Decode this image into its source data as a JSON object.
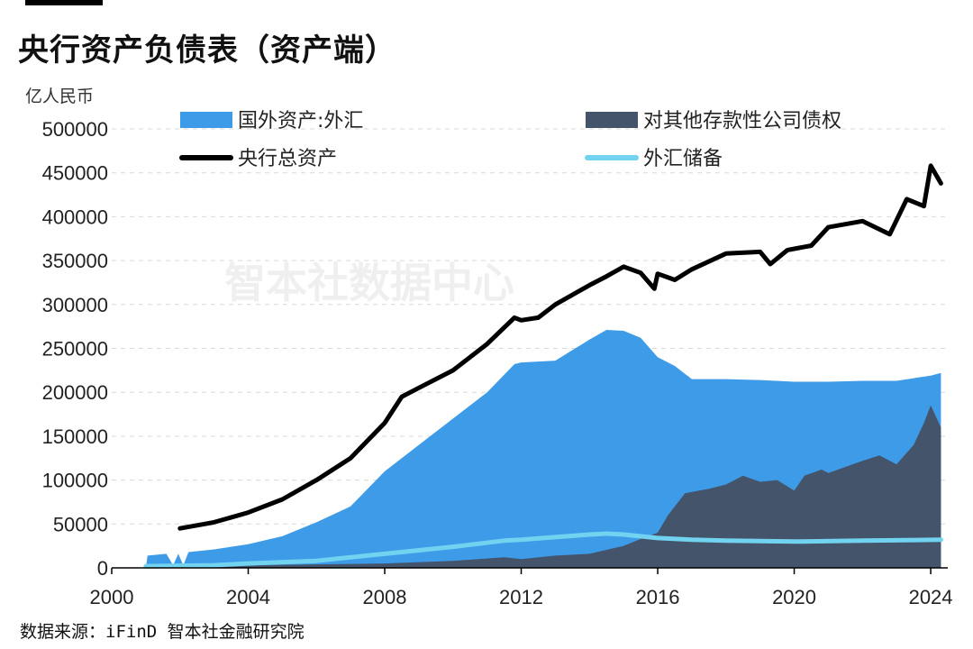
{
  "chart_data": {
    "type": "area",
    "title": "央行资产负债表（资产端）",
    "unit_label": "亿人民币",
    "source": "数据来源：iFinD 智本社金融研究院",
    "watermark": "智本社数据中心",
    "xlim": [
      2000,
      2024.5
    ],
    "ylim": [
      0,
      500000
    ],
    "x_ticks": [
      "2000",
      "2004",
      "2008",
      "2012",
      "2016",
      "2020",
      "2024"
    ],
    "y_ticks": [
      "0",
      "50000",
      "100000",
      "150000",
      "200000",
      "250000",
      "300000",
      "350000",
      "400000",
      "450000",
      "500000"
    ],
    "grid": true,
    "legend_position": "top",
    "series": [
      {
        "name": "国外资产:外汇",
        "style": "area",
        "color": "#3d9be8",
        "points": [
          [
            2001.0,
            0
          ],
          [
            2001.05,
            14000
          ],
          [
            2001.6,
            16000
          ],
          [
            2001.8,
            3000
          ],
          [
            2001.95,
            16000
          ],
          [
            2002.1,
            3000
          ],
          [
            2002.25,
            18000
          ],
          [
            2003,
            21000
          ],
          [
            2004,
            27000
          ],
          [
            2005,
            36000
          ],
          [
            2006,
            52000
          ],
          [
            2007,
            70000
          ],
          [
            2008,
            110000
          ],
          [
            2009,
            140000
          ],
          [
            2010,
            170000
          ],
          [
            2011,
            200000
          ],
          [
            2011.8,
            232000
          ],
          [
            2012,
            234000
          ],
          [
            2013,
            236000
          ],
          [
            2014,
            260000
          ],
          [
            2014.5,
            271000
          ],
          [
            2015,
            270000
          ],
          [
            2015.5,
            262000
          ],
          [
            2016,
            240000
          ],
          [
            2016.5,
            230000
          ],
          [
            2017,
            215000
          ],
          [
            2018,
            215000
          ],
          [
            2019,
            214000
          ],
          [
            2020,
            212000
          ],
          [
            2021,
            212000
          ],
          [
            2022,
            213000
          ],
          [
            2023,
            213000
          ],
          [
            2023.5,
            216000
          ],
          [
            2024,
            219000
          ],
          [
            2024.3,
            222000
          ],
          [
            2024.3,
            0
          ]
        ]
      },
      {
        "name": "对其他存款性公司债权",
        "style": "area",
        "color": "#44546a",
        "points": [
          [
            2001.0,
            0
          ],
          [
            2004,
            3000
          ],
          [
            2006,
            4000
          ],
          [
            2008,
            5000
          ],
          [
            2010,
            8000
          ],
          [
            2011.5,
            12000
          ],
          [
            2012,
            10000
          ],
          [
            2013,
            14000
          ],
          [
            2014,
            16000
          ],
          [
            2015,
            25000
          ],
          [
            2015.5,
            33000
          ],
          [
            2016,
            40000
          ],
          [
            2016.3,
            60000
          ],
          [
            2016.8,
            85000
          ],
          [
            2017.5,
            90000
          ],
          [
            2018,
            95000
          ],
          [
            2018.5,
            105000
          ],
          [
            2019,
            98000
          ],
          [
            2019.5,
            100000
          ],
          [
            2020,
            88000
          ],
          [
            2020.3,
            105000
          ],
          [
            2020.8,
            112000
          ],
          [
            2021,
            108000
          ],
          [
            2021.5,
            115000
          ],
          [
            2022,
            122000
          ],
          [
            2022.5,
            128000
          ],
          [
            2023,
            118000
          ],
          [
            2023.5,
            140000
          ],
          [
            2023.8,
            165000
          ],
          [
            2024,
            185000
          ],
          [
            2024.3,
            160000
          ],
          [
            2024.3,
            0
          ]
        ]
      },
      {
        "name": "央行总资产",
        "style": "line",
        "color": "#000000",
        "points": [
          [
            2002,
            45000
          ],
          [
            2003,
            52000
          ],
          [
            2004,
            63000
          ],
          [
            2005,
            78000
          ],
          [
            2006,
            100000
          ],
          [
            2007,
            125000
          ],
          [
            2008,
            165000
          ],
          [
            2008.5,
            195000
          ],
          [
            2009,
            205000
          ],
          [
            2010,
            225000
          ],
          [
            2011,
            255000
          ],
          [
            2011.8,
            285000
          ],
          [
            2012,
            282000
          ],
          [
            2012.5,
            285000
          ],
          [
            2013,
            300000
          ],
          [
            2014,
            322000
          ],
          [
            2014.5,
            332000
          ],
          [
            2015,
            343000
          ],
          [
            2015.5,
            336000
          ],
          [
            2015.9,
            318000
          ],
          [
            2016,
            335000
          ],
          [
            2016.5,
            328000
          ],
          [
            2017,
            340000
          ],
          [
            2018,
            358000
          ],
          [
            2019,
            360000
          ],
          [
            2019.3,
            346000
          ],
          [
            2019.8,
            362000
          ],
          [
            2020.5,
            367000
          ],
          [
            2021,
            388000
          ],
          [
            2022,
            395000
          ],
          [
            2022.8,
            380000
          ],
          [
            2023.3,
            420000
          ],
          [
            2023.8,
            412000
          ],
          [
            2024,
            458000
          ],
          [
            2024.3,
            438000
          ]
        ]
      },
      {
        "name": "外汇储备",
        "style": "line",
        "color": "#72d3f0",
        "points": [
          [
            2001,
            2000
          ],
          [
            2003,
            3000
          ],
          [
            2004,
            5000
          ],
          [
            2006,
            8000
          ],
          [
            2008,
            16000
          ],
          [
            2010,
            24000
          ],
          [
            2011.5,
            31000
          ],
          [
            2012,
            32000
          ],
          [
            2013,
            35000
          ],
          [
            2014,
            38000
          ],
          [
            2014.5,
            39000
          ],
          [
            2015,
            38000
          ],
          [
            2016,
            34000
          ],
          [
            2017,
            32000
          ],
          [
            2018,
            31000
          ],
          [
            2020,
            30000
          ],
          [
            2022,
            31000
          ],
          [
            2024.3,
            32000
          ]
        ]
      }
    ]
  }
}
